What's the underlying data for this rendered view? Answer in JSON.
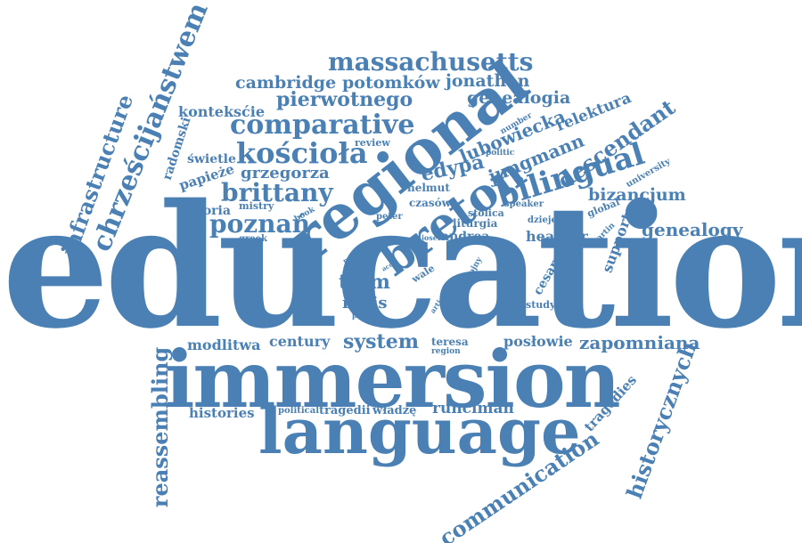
{
  "color": "#4a80b4",
  "words": [
    "education",
    "immersion",
    "language",
    "regional",
    "bilingual",
    "breton",
    "massachusetts",
    "comparative",
    "kościoła",
    "brittany",
    "poznań",
    "cambridge",
    "potomków",
    "jonathan",
    "pierwotnego",
    "genealogia",
    "lubowiecka",
    "relektura",
    "descendant",
    "jungmann",
    "edypa",
    "konteksćie",
    "chrześcijaństwem",
    "infrastructure",
    "radomski",
    "świetle",
    "papieże",
    "grzegorza",
    "historia",
    "mistry",
    "greek",
    "book",
    "helmut",
    "czasów",
    "peter",
    "stolica",
    "liturgia",
    "andrea",
    "josef",
    "speaker",
    "dzieje",
    "heather",
    "global",
    "martin",
    "support",
    "university",
    "number",
    "politic",
    "review",
    "bizancjum",
    "genealogy",
    "tłum",
    "rebis",
    "wale",
    "pme",
    "acc",
    "article",
    "wojny",
    "paper",
    "cesarze",
    "study",
    "posłowie",
    "zapomniana",
    "teresa",
    "region",
    "system",
    "century",
    "modlitwa",
    "reassembling",
    "histories",
    "political",
    "tragedii",
    "władzę",
    "runciman",
    "tragedies",
    "historycznych",
    "communication",
    "open"
  ]
}
